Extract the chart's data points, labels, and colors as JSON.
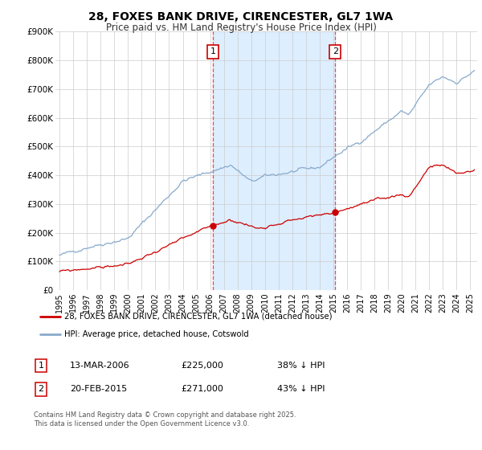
{
  "title": "28, FOXES BANK DRIVE, CIRENCESTER, GL7 1WA",
  "subtitle": "Price paid vs. HM Land Registry's House Price Index (HPI)",
  "x_start": 1994.7,
  "x_end": 2025.5,
  "y_max": 900000,
  "plot_bg_color": "#ffffff",
  "fig_bg_color": "#ffffff",
  "grid_color": "#cccccc",
  "span_color": "#ddeeff",
  "red_line_color": "#cc0000",
  "blue_line_color": "#88aacc",
  "vline_color": "#ff4444",
  "sale1_x": 2006.2,
  "sale1_y": 225000,
  "sale1_label": "1",
  "sale1_date": "13-MAR-2006",
  "sale1_price": "£225,000",
  "sale1_note": "38% ↓ HPI",
  "sale2_x": 2015.13,
  "sale2_y": 271000,
  "sale2_label": "2",
  "sale2_date": "20-FEB-2015",
  "sale2_price": "£271,000",
  "sale2_note": "43% ↓ HPI",
  "yticks": [
    0,
    100000,
    200000,
    300000,
    400000,
    500000,
    600000,
    700000,
    800000,
    900000
  ],
  "ytick_labels": [
    "£0",
    "£100K",
    "£200K",
    "£300K",
    "£400K",
    "£500K",
    "£600K",
    "£700K",
    "£800K",
    "£900K"
  ],
  "xticks": [
    1995,
    1996,
    1997,
    1998,
    1999,
    2000,
    2001,
    2002,
    2003,
    2004,
    2005,
    2006,
    2007,
    2008,
    2009,
    2010,
    2011,
    2012,
    2013,
    2014,
    2015,
    2016,
    2017,
    2018,
    2019,
    2020,
    2021,
    2022,
    2023,
    2024,
    2025
  ],
  "legend_line1": "28, FOXES BANK DRIVE, CIRENCESTER, GL7 1WA (detached house)",
  "legend_line2": "HPI: Average price, detached house, Cotswold",
  "footnote": "Contains HM Land Registry data © Crown copyright and database right 2025.\nThis data is licensed under the Open Government Licence v3.0."
}
